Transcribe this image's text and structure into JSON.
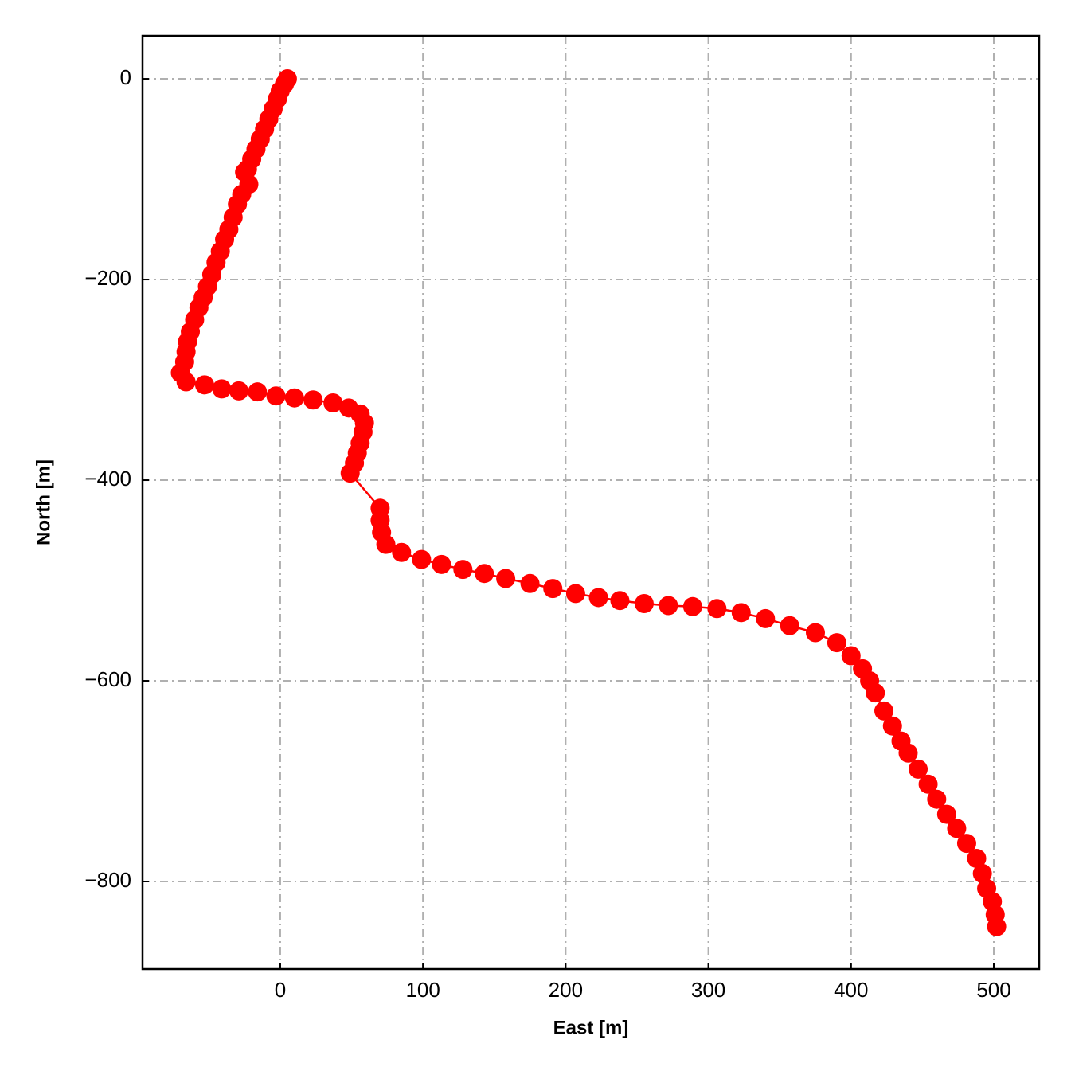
{
  "chart_data": {
    "type": "line",
    "x_label": "East [m]",
    "y_label": "North [m]",
    "x": [
      5,
      3,
      0,
      -2,
      -5,
      -8,
      -11,
      -14,
      -17,
      -20,
      -23,
      -25,
      -22,
      -27,
      -30,
      -33,
      -36,
      -39,
      -42,
      -45,
      -48,
      -51,
      -54,
      -57,
      -60,
      -63,
      -65,
      -66,
      -67,
      -70,
      -66,
      -53,
      -41,
      -29,
      -16,
      -3,
      10,
      23,
      37,
      48,
      56,
      59,
      58,
      56,
      54,
      52,
      49,
      70,
      70,
      71,
      74,
      85,
      99,
      113,
      128,
      143,
      158,
      175,
      191,
      207,
      223,
      238,
      255,
      272,
      289,
      306,
      323,
      340,
      357,
      375,
      390,
      400,
      408,
      413,
      417,
      423,
      429,
      435,
      440,
      447,
      454,
      460,
      467,
      474,
      481,
      488,
      492,
      495,
      499,
      501,
      502
    ],
    "series": [
      {
        "color": "#ff0000",
        "values": [
          0,
          -5,
          -12,
          -20,
          -30,
          -40,
          -50,
          -60,
          -70,
          -80,
          -90,
          -93,
          -105,
          -115,
          -125,
          -138,
          -150,
          -160,
          -172,
          -183,
          -195,
          -207,
          -218,
          -228,
          -240,
          -252,
          -262,
          -272,
          -282,
          -293,
          -302,
          -305,
          -309,
          -311,
          -312,
          -316,
          -318,
          -320,
          -323,
          -328,
          -334,
          -343,
          -352,
          -363,
          -373,
          -383,
          -393,
          -428,
          -440,
          -452,
          -464,
          -472,
          -479,
          -484,
          -489,
          -493,
          -498,
          -503,
          -508,
          -513,
          -517,
          -520,
          -523,
          -525,
          -526,
          -528,
          -532,
          -538,
          -545,
          -552,
          -562,
          -575,
          -588,
          -600,
          -612,
          -630,
          -645,
          -660,
          -672,
          -688,
          -703,
          -718,
          -733,
          -747,
          -762,
          -777,
          -792,
          -807,
          -820,
          -833,
          -845
        ]
      }
    ],
    "xlim": [
      -96.5,
      531.8
    ],
    "ylim": [
      -887.3,
      42.9
    ],
    "xticks": [
      0,
      100,
      200,
      300,
      400,
      500
    ],
    "yticks": [
      {
        "value": -800,
        "label": "−800"
      },
      {
        "value": -600,
        "label": "−600"
      },
      {
        "value": -400,
        "label": "−400"
      },
      {
        "value": -200,
        "label": "−200"
      },
      0
    ],
    "grid": true
  }
}
